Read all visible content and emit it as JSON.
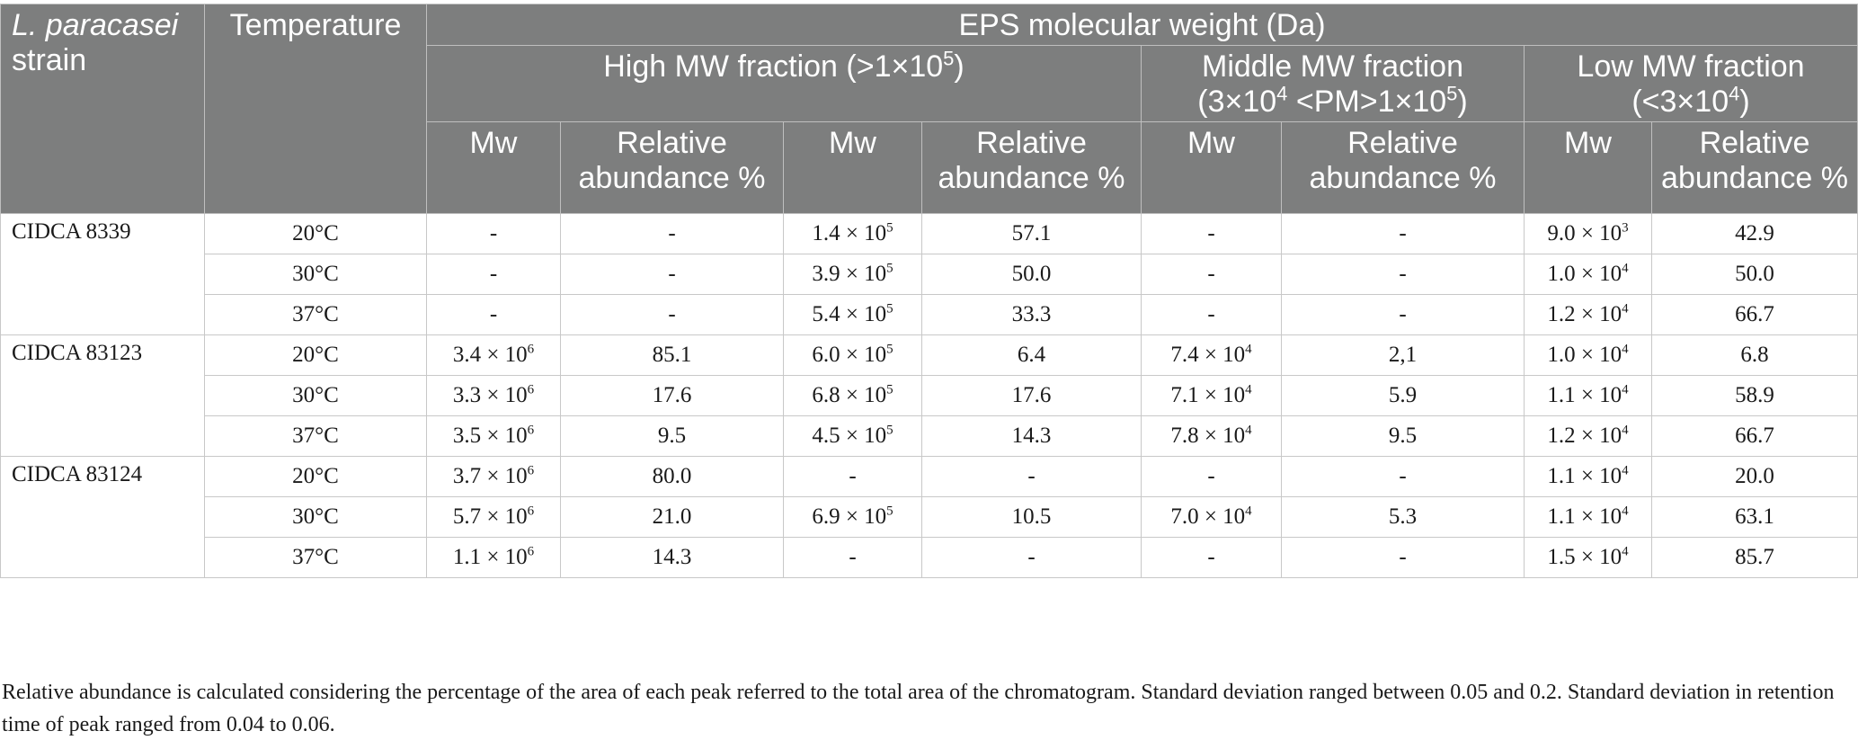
{
  "header": {
    "strain_ital": "L. paracasei",
    "strain_rest": "strain",
    "temperature": "Temperature",
    "eps_title": "EPS molecular weight (Da)",
    "high_pre": "High MW fraction (>1×10",
    "high_exp": "5",
    "high_post": ")",
    "middle_line1": "Middle MW fraction",
    "middle_pre": "(3×10",
    "middle_exp1": "4",
    "middle_mid": " <PM>1×10",
    "middle_exp2": "5",
    "middle_post": ")",
    "low_line1": "Low MW fraction",
    "low_pre": "(<3×10",
    "low_exp": "4",
    "low_post": ")",
    "mw": "Mw",
    "rel_abund": "Relative abundance %"
  },
  "groups": [
    {
      "strain": "CIDCA 8339",
      "rows": [
        {
          "temp": "20°C",
          "c1": {
            "b": "-"
          },
          "c2": "-",
          "c3": {
            "b": "1.4 × 10",
            "e": "5"
          },
          "c4": "57.1",
          "c5": {
            "b": "-"
          },
          "c6": "-",
          "c7": {
            "b": "9.0 × 10",
            "e": "3"
          },
          "c8": "42.9"
        },
        {
          "temp": "30°C",
          "c1": {
            "b": "-"
          },
          "c2": "-",
          "c3": {
            "b": "3.9 × 10",
            "e": "5"
          },
          "c4": "50.0",
          "c5": {
            "b": "-"
          },
          "c6": "-",
          "c7": {
            "b": "1.0 × 10",
            "e": "4"
          },
          "c8": "50.0"
        },
        {
          "temp": "37°C",
          "c1": {
            "b": "-"
          },
          "c2": "-",
          "c3": {
            "b": "5.4 × 10",
            "e": "5"
          },
          "c4": "33.3",
          "c5": {
            "b": "-"
          },
          "c6": "-",
          "c7": {
            "b": "1.2 × 10",
            "e": "4"
          },
          "c8": "66.7"
        }
      ]
    },
    {
      "strain": "CIDCA 83123",
      "rows": [
        {
          "temp": "20°C",
          "c1": {
            "b": "3.4 × 10",
            "e": "6"
          },
          "c2": "85.1",
          "c3": {
            "b": "6.0 × 10",
            "e": "5"
          },
          "c4": "6.4",
          "c5": {
            "b": "7.4 × 10",
            "e": "4"
          },
          "c6": "2,1",
          "c7": {
            "b": "1.0 × 10",
            "e": "4"
          },
          "c8": "6.8"
        },
        {
          "temp": "30°C",
          "c1": {
            "b": "3.3 × 10",
            "e": "6"
          },
          "c2": "17.6",
          "c3": {
            "b": "6.8 × 10",
            "e": "5"
          },
          "c4": "17.6",
          "c5": {
            "b": "7.1 × 10",
            "e": "4"
          },
          "c6": "5.9",
          "c7": {
            "b": "1.1 × 10",
            "e": "4"
          },
          "c8": "58.9"
        },
        {
          "temp": "37°C",
          "c1": {
            "b": "3.5 × 10",
            "e": "6"
          },
          "c2": "9.5",
          "c3": {
            "b": "4.5 × 10",
            "e": "5"
          },
          "c4": "14.3",
          "c5": {
            "b": "7.8 × 10",
            "e": "4"
          },
          "c6": "9.5",
          "c7": {
            "b": "1.2 × 10",
            "e": "4"
          },
          "c8": "66.7"
        }
      ]
    },
    {
      "strain": "CIDCA 83124",
      "rows": [
        {
          "temp": "20°C",
          "c1": {
            "b": "3.7 × 10",
            "e": "6"
          },
          "c2": "80.0",
          "c3": {
            "b": "-"
          },
          "c4": "-",
          "c5": {
            "b": "-"
          },
          "c6": "-",
          "c7": {
            "b": "1.1 × 10",
            "e": "4"
          },
          "c8": "20.0"
        },
        {
          "temp": "30°C",
          "c1": {
            "b": "5.7 × 10",
            "e": "6"
          },
          "c2": "21.0",
          "c3": {
            "b": "6.9 × 10",
            "e": "5"
          },
          "c4": "10.5",
          "c5": {
            "b": "7.0 × 10",
            "e": "4"
          },
          "c6": "5.3",
          "c7": {
            "b": "1.1 × 10",
            "e": "4"
          },
          "c8": "63.1"
        },
        {
          "temp": "37°C",
          "c1": {
            "b": "1.1 × 10",
            "e": "6"
          },
          "c2": "14.3",
          "c3": {
            "b": "-"
          },
          "c4": "-",
          "c5": {
            "b": "-"
          },
          "c6": "-",
          "c7": {
            "b": "1.5 × 10",
            "e": "4"
          },
          "c8": "85.7"
        }
      ]
    }
  ],
  "footnote": "Relative abundance is calculated considering the percentage of the area of each peak referred to the total area of the chromatogram. Standard deviation ranged between 0.05 and 0.2. Standard deviation in retention time of peak ranged from 0.04 to 0.06."
}
